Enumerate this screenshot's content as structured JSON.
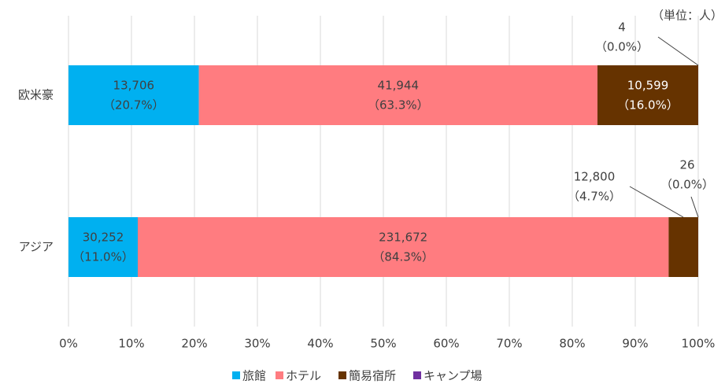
{
  "chart_data": {
    "type": "bar",
    "orientation": "horizontal",
    "stacked": true,
    "annotation": "（単位：人）",
    "categories": [
      "欧米豪",
      "アジア"
    ],
    "series": [
      {
        "name": "旅館",
        "color": "#00b0f0",
        "values": [
          20.7,
          11.0
        ],
        "value_labels": [
          "（20.7%）",
          "（11.0%）"
        ],
        "count_labels": [
          "13,706",
          "30,252"
        ]
      },
      {
        "name": "ホテル",
        "color": "#ff7c80",
        "values": [
          63.3,
          84.3
        ],
        "value_labels": [
          "（63.3%）",
          "（84.3%）"
        ],
        "count_labels": [
          "41,944",
          "231,672"
        ]
      },
      {
        "name": "簡易宿所",
        "color": "#663300",
        "values": [
          16.0,
          4.7
        ],
        "value_labels": [
          "（16.0%）",
          "（4.7%）"
        ],
        "count_labels": [
          "10,599",
          "12,800"
        ]
      },
      {
        "name": "キャンプ場",
        "color": "#7030a0",
        "values": [
          0.0,
          0.0
        ],
        "value_labels": [
          "（0.0%）",
          "（0.0%）"
        ],
        "count_labels": [
          "4",
          "26"
        ]
      }
    ],
    "xlim": [
      0,
      100
    ],
    "xticks": [
      {
        "value": 0,
        "label": "0%"
      },
      {
        "value": 10,
        "label": "10%"
      },
      {
        "value": 20,
        "label": "20%"
      },
      {
        "value": 30,
        "label": "30%"
      },
      {
        "value": 40,
        "label": "40%"
      },
      {
        "value": 50,
        "label": "50%"
      },
      {
        "value": 60,
        "label": "60%"
      },
      {
        "value": 70,
        "label": "70%"
      },
      {
        "value": 80,
        "label": "80%"
      },
      {
        "value": 90,
        "label": "90%"
      },
      {
        "value": 100,
        "label": "100%"
      }
    ],
    "grid": true,
    "legend": "bottom"
  }
}
